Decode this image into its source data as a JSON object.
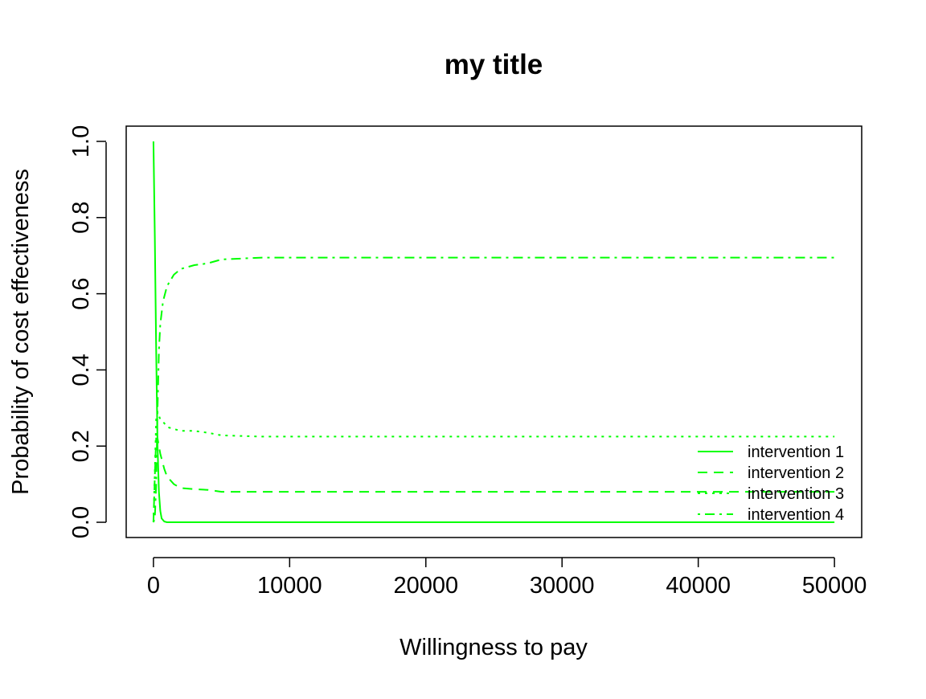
{
  "chart_data": {
    "type": "line",
    "title": "my title",
    "xlabel": "Willingness to pay",
    "ylabel": "Probability of cost effectiveness",
    "xlim": [
      -2000,
      52000
    ],
    "ylim": [
      -0.04,
      1.04
    ],
    "x_ticks": [
      0,
      10000,
      20000,
      30000,
      40000,
      50000
    ],
    "x_tick_labels": [
      "0",
      "10000",
      "20000",
      "30000",
      "40000",
      "50000"
    ],
    "y_ticks": [
      0.0,
      0.2,
      0.4,
      0.6,
      0.8,
      1.0
    ],
    "y_tick_labels": [
      "0.0",
      "0.2",
      "0.4",
      "0.6",
      "0.8",
      "1.0"
    ],
    "grid": false,
    "legend_position": "bottom-right",
    "line_color": "#00ff00",
    "series": [
      {
        "name": "intervention 1",
        "line_style": "solid",
        "x": [
          0,
          100,
          200,
          300,
          400,
          500,
          600,
          800,
          1000,
          50000
        ],
        "y": [
          1.0,
          0.75,
          0.45,
          0.2,
          0.08,
          0.03,
          0.01,
          0.002,
          0.0,
          0.0
        ]
      },
      {
        "name": "intervention 2",
        "line_style": "dashed",
        "x": [
          0,
          100,
          200,
          300,
          500,
          800,
          1000,
          1500,
          2000,
          3000,
          4000,
          5000,
          8000,
          50000
        ],
        "y": [
          0.0,
          0.12,
          0.22,
          0.22,
          0.18,
          0.14,
          0.12,
          0.1,
          0.09,
          0.087,
          0.085,
          0.08,
          0.08,
          0.08
        ]
      },
      {
        "name": "intervention 3",
        "line_style": "dotted",
        "x": [
          0,
          100,
          200,
          300,
          500,
          800,
          1000,
          2000,
          3000,
          4000,
          5000,
          8000,
          50000
        ],
        "y": [
          0.0,
          0.13,
          0.27,
          0.29,
          0.27,
          0.26,
          0.25,
          0.24,
          0.24,
          0.235,
          0.228,
          0.225,
          0.225
        ]
      },
      {
        "name": "intervention 4",
        "line_style": "dotdash",
        "x": [
          0,
          100,
          200,
          300,
          400,
          500,
          700,
          1000,
          1500,
          2000,
          3000,
          4000,
          5000,
          8000,
          50000
        ],
        "y": [
          0.0,
          0.01,
          0.1,
          0.3,
          0.45,
          0.52,
          0.58,
          0.62,
          0.65,
          0.665,
          0.675,
          0.68,
          0.69,
          0.695,
          0.695
        ]
      }
    ]
  }
}
